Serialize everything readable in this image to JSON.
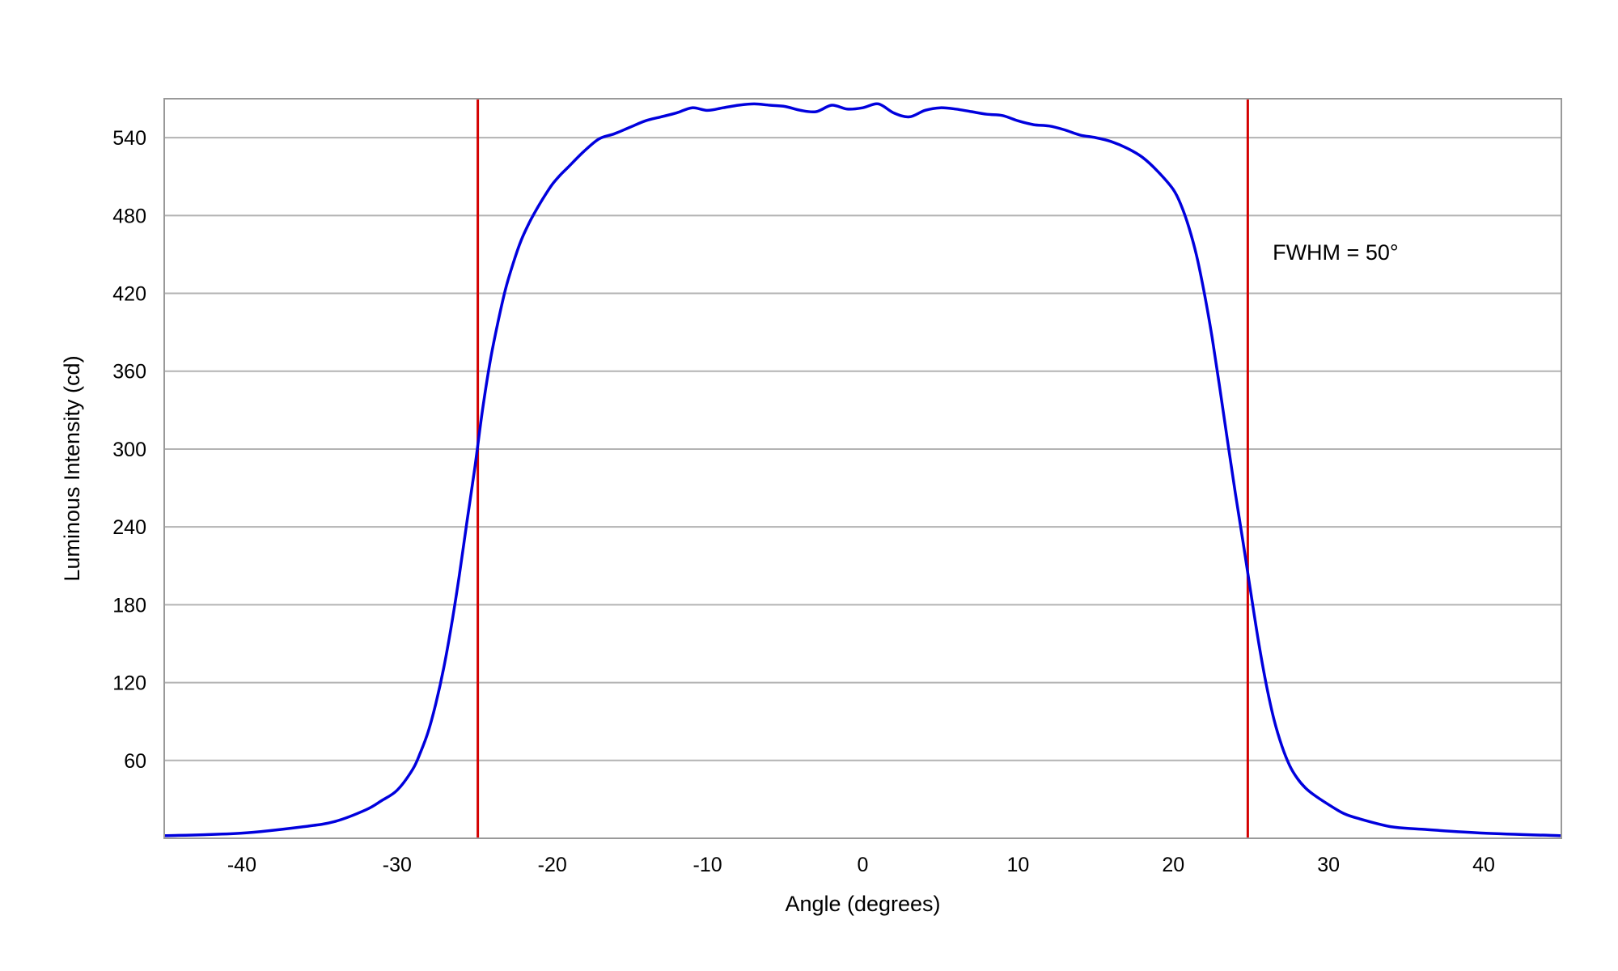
{
  "chart_data": {
    "type": "line",
    "title": "",
    "xlabel": "Angle (degrees)",
    "ylabel": "Luminous Intensity (cd)",
    "xlim": [
      -45,
      45
    ],
    "ylim": [
      0,
      570
    ],
    "x_ticks": [
      -40,
      -30,
      -20,
      -10,
      0,
      10,
      20,
      30,
      40
    ],
    "y_ticks": [
      60,
      120,
      180,
      240,
      300,
      360,
      420,
      480,
      540
    ],
    "grid": "horizontal",
    "legend": "none",
    "series": [
      {
        "color": "#0000dd",
        "x": [
          -45,
          -40,
          -36,
          -34,
          -32,
          -31,
          -30,
          -29,
          -28.5,
          -28,
          -27.5,
          -27,
          -26.5,
          -26,
          -25.5,
          -25,
          -24.5,
          -24,
          -23.5,
          -23,
          -22.5,
          -22,
          -21.5,
          -21,
          -20.5,
          -20,
          -19.5,
          -19,
          -18,
          -17,
          -16,
          -15,
          -14,
          -13,
          -12,
          -11,
          -10,
          -9,
          -8,
          -7,
          -6,
          -5,
          -4,
          -3,
          -2,
          -1,
          0,
          1,
          2,
          3,
          4,
          5,
          6,
          7,
          8,
          9,
          10,
          11,
          12,
          13,
          14,
          15,
          16,
          17,
          18,
          19,
          20,
          20.5,
          21,
          21.5,
          22,
          22.5,
          23,
          23.5,
          24,
          24.5,
          25,
          25.5,
          26,
          26.5,
          27,
          27.5,
          28,
          28.5,
          29,
          30,
          31,
          32,
          34,
          36,
          40,
          45
        ],
        "y": [
          2,
          4,
          9,
          13,
          22,
          29,
          37,
          53,
          66,
          82,
          104,
          131,
          164,
          202,
          244,
          285,
          330,
          368,
          398,
          424,
          444,
          461,
          474,
          485,
          495,
          504,
          511,
          517,
          529,
          539,
          543,
          548,
          553,
          556,
          559,
          563,
          561,
          563,
          565,
          566,
          565,
          564,
          561,
          560,
          565,
          562,
          563,
          566,
          559,
          556,
          561,
          563,
          562,
          560,
          558,
          557,
          553,
          550,
          549,
          546,
          542,
          540,
          537,
          532,
          525,
          514,
          500,
          488,
          471,
          449,
          420,
          386,
          347,
          306,
          266,
          228,
          189,
          151,
          118,
          91,
          71,
          56,
          46,
          39,
          34,
          26,
          19,
          15,
          9,
          7,
          4,
          2
        ]
      }
    ],
    "vertical_lines": [
      {
        "x": -24.8,
        "color": "#d40000"
      },
      {
        "x": 24.8,
        "color": "#d40000"
      }
    ],
    "annotation": {
      "text": "FWHM = 50°",
      "x": 26.4,
      "y": 446
    },
    "colors": {
      "grid": "#b3b3b3",
      "frame": "#999999",
      "curve": "#0000dd",
      "marker_lines": "#d40000"
    }
  }
}
